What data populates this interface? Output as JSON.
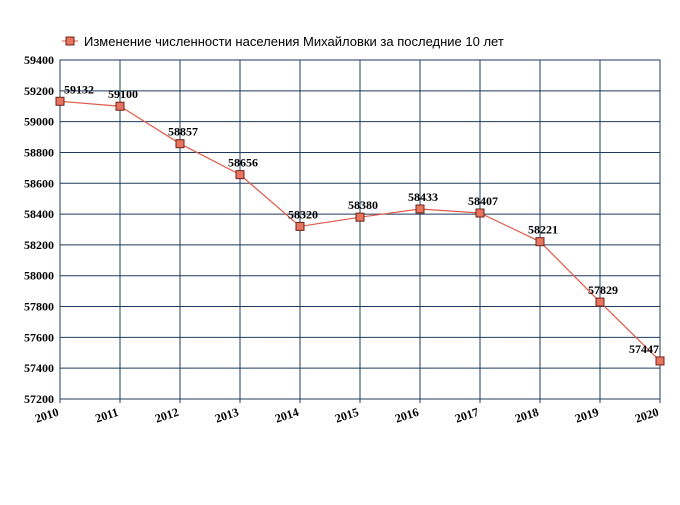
{
  "chart_data": {
    "type": "line",
    "title": "",
    "xlabel": "",
    "ylabel": "",
    "legend": {
      "position": "top",
      "entries": [
        "Изменение численности населения Михайловки за последние 10 лет"
      ]
    },
    "x": [
      "2010",
      "2011",
      "2012",
      "2013",
      "2014",
      "2015",
      "2016",
      "2017",
      "2018",
      "2019",
      "2020"
    ],
    "series": [
      {
        "name": "Изменение численности населения Михайловки за последние 10 лет",
        "values": [
          59132,
          59100,
          58857,
          58656,
          58320,
          58380,
          58433,
          58407,
          58221,
          57829,
          57447
        ],
        "labels": [
          "59132",
          "59100",
          "58857",
          "58656",
          "58320",
          "58380",
          "58433",
          "58407",
          "58221",
          "57829",
          "57447"
        ]
      }
    ],
    "ylim": [
      57200,
      59400
    ],
    "yticks": [
      "57200",
      "57400",
      "57600",
      "57800",
      "58000",
      "58200",
      "58400",
      "58600",
      "58800",
      "59000",
      "59200",
      "59400"
    ],
    "ytick_values": [
      57200,
      57400,
      57600,
      57800,
      58000,
      58200,
      58400,
      58600,
      58800,
      59000,
      59200,
      59400
    ],
    "grid": true,
    "colors": {
      "line": "#e05a4a",
      "marker_fill": "#e8735f",
      "marker_stroke": "#6b2418",
      "grid": "#1f3b5c"
    }
  }
}
